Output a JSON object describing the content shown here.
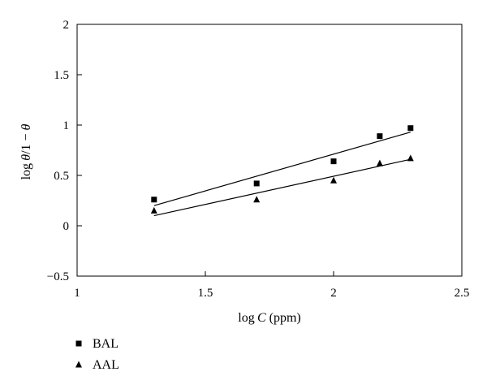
{
  "chart_data": {
    "type": "scatter",
    "title": "",
    "xlabel_prefix": "log ",
    "xlabel_var": "C",
    "xlabel_suffix": " (ppm)",
    "ylabel_prefix": "log ",
    "ylabel_var": "θ",
    "ylabel_mid": "/1 − ",
    "ylabel_var2": "θ",
    "xlim": [
      1,
      2.5
    ],
    "ylim": [
      -0.5,
      2
    ],
    "x_ticks": [
      1,
      1.5,
      2,
      2.5
    ],
    "x_tick_labels": [
      "1",
      "1.5",
      "2",
      "2.5"
    ],
    "y_ticks": [
      -0.5,
      0,
      0.5,
      1,
      1.5,
      2
    ],
    "y_tick_labels": [
      "−0.5",
      "0",
      "0.5",
      "1",
      "1.5",
      "2"
    ],
    "grid": false,
    "legend_placement": "bottom-left",
    "series": [
      {
        "name": "BAL",
        "marker": "square",
        "color": "#000000",
        "x": [
          1.3,
          1.7,
          2.0,
          2.18,
          2.3
        ],
        "y": [
          0.26,
          0.42,
          0.64,
          0.89,
          0.97
        ],
        "fit": {
          "x": [
            1.3,
            2.3
          ],
          "y": [
            0.2,
            0.93
          ]
        }
      },
      {
        "name": "AAL",
        "marker": "triangle",
        "color": "#000000",
        "x": [
          1.3,
          1.7,
          2.0,
          2.18,
          2.3
        ],
        "y": [
          0.15,
          0.26,
          0.45,
          0.62,
          0.67
        ],
        "fit": {
          "x": [
            1.3,
            2.3
          ],
          "y": [
            0.1,
            0.66
          ]
        }
      }
    ]
  }
}
